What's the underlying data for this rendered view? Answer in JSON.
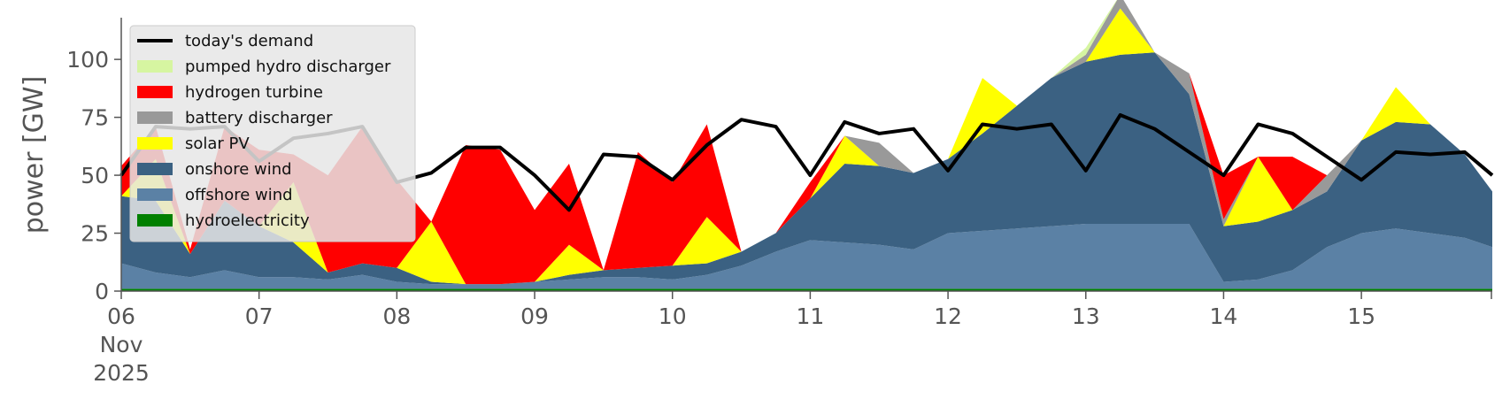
{
  "chart_data": {
    "type": "area",
    "title": "",
    "ylabel": "power [GW]",
    "xlabel": "",
    "ylim": [
      0,
      118
    ],
    "xlim": [
      0,
      9.95
    ],
    "yticks": [
      0,
      25,
      50,
      75,
      100
    ],
    "xticks": [
      {
        "pos": 0,
        "lines": [
          "06",
          "Nov",
          "2025"
        ]
      },
      {
        "pos": 1,
        "lines": [
          "07"
        ]
      },
      {
        "pos": 2,
        "lines": [
          "08"
        ]
      },
      {
        "pos": 3,
        "lines": [
          "09"
        ]
      },
      {
        "pos": 4,
        "lines": [
          "10"
        ]
      },
      {
        "pos": 5,
        "lines": [
          "11"
        ]
      },
      {
        "pos": 6,
        "lines": [
          "12"
        ]
      },
      {
        "pos": 7,
        "lines": [
          "13"
        ]
      },
      {
        "pos": 8,
        "lines": [
          "14"
        ]
      },
      {
        "pos": 9,
        "lines": [
          "15"
        ]
      }
    ],
    "x": [
      0,
      0.25,
      0.5,
      0.75,
      1,
      1.25,
      1.5,
      1.75,
      2,
      2.25,
      2.5,
      2.75,
      3,
      3.25,
      3.5,
      3.75,
      4,
      4.25,
      4.5,
      4.75,
      5,
      5.25,
      5.5,
      5.75,
      6,
      6.25,
      6.5,
      6.75,
      7,
      7.25,
      7.5,
      7.75,
      8,
      8.25,
      8.5,
      8.75,
      9,
      9.25,
      9.5,
      9.75,
      9.95
    ],
    "x_unit": "days since 06 Nov 2025",
    "legend": {
      "placement": "top-left",
      "grid": false
    },
    "series": [
      {
        "name": "hydroelectricity",
        "color": "#008000",
        "values": [
          1,
          1,
          1,
          1,
          1,
          1,
          1,
          1,
          1,
          1,
          1,
          1,
          1,
          1,
          1,
          1,
          1,
          1,
          1,
          1,
          1,
          1,
          1,
          1,
          1,
          1,
          1,
          1,
          1,
          1,
          1,
          1,
          1,
          1,
          1,
          1,
          1,
          1,
          1,
          1,
          1
        ]
      },
      {
        "name": "offshore wind",
        "color": "#5b81a5",
        "values": [
          11,
          7,
          5,
          8,
          5,
          5,
          4,
          6,
          3,
          2,
          2,
          2,
          3,
          4,
          5,
          5,
          4,
          6,
          10,
          16,
          21,
          20,
          19,
          17,
          24,
          25,
          26,
          27,
          28,
          28,
          28,
          28,
          3,
          4,
          8,
          18,
          24,
          26,
          24,
          22,
          18
        ]
      },
      {
        "name": "onshore wind",
        "color": "#3b6182",
        "values": [
          29,
          31,
          10,
          30,
          22,
          15,
          3,
          5,
          6,
          1,
          0,
          0,
          0,
          2,
          3,
          4,
          6,
          5,
          6,
          8,
          18,
          34,
          34,
          33,
          32,
          42,
          53,
          64,
          70,
          73,
          74,
          56,
          24,
          25,
          26,
          24,
          40,
          46,
          47,
          36,
          24
        ]
      },
      {
        "name": "solar PV",
        "color": "#ffff00",
        "values": [
          0,
          18,
          0,
          0,
          0,
          26,
          0,
          0,
          0,
          26,
          0,
          0,
          0,
          13,
          0,
          0,
          0,
          20,
          0,
          0,
          0,
          12,
          0,
          0,
          0,
          24,
          0,
          0,
          0,
          20,
          0,
          0,
          0,
          28,
          0,
          0,
          0,
          15,
          0,
          0,
          0
        ]
      },
      {
        "name": "battery discharger",
        "color": "#999999",
        "values": [
          0,
          0,
          0,
          0,
          0,
          0,
          0,
          0,
          0,
          0,
          0,
          0,
          0,
          0,
          0,
          0,
          0,
          0,
          0,
          0,
          0,
          0,
          10,
          0,
          0,
          0,
          0,
          0,
          3,
          6,
          0,
          9,
          3,
          0,
          0,
          7,
          0,
          0,
          0,
          0,
          0
        ]
      },
      {
        "name": "hydrogen turbine",
        "color": "#ff0000",
        "values": [
          13,
          14,
          2,
          32,
          33,
          12,
          42,
          59,
          38,
          0,
          60,
          58,
          31,
          35,
          0,
          50,
          36,
          40,
          0,
          0,
          7,
          0,
          0,
          0,
          0,
          0,
          0,
          0,
          0,
          0,
          0,
          0,
          19,
          0,
          23,
          0,
          0,
          0,
          0,
          0,
          0
        ]
      },
      {
        "name": "pumped hydro discharger",
        "color": "#d6f5a1",
        "values": [
          0,
          0,
          0,
          0,
          0,
          0,
          0,
          0,
          0,
          0,
          0,
          0,
          0,
          0,
          0,
          0,
          0,
          0,
          0,
          0,
          0,
          0,
          0,
          0,
          0,
          0,
          0,
          0,
          3,
          0,
          0,
          0,
          0,
          0,
          0,
          0,
          0,
          0,
          0,
          0,
          0
        ]
      },
      {
        "name": "today's demand",
        "color": "#000000",
        "line": true,
        "values": [
          50,
          71,
          70,
          71,
          56,
          66,
          68,
          71,
          47,
          51,
          62,
          62,
          50,
          35,
          59,
          58,
          48,
          63,
          74,
          71,
          50,
          73,
          68,
          70,
          52,
          72,
          70,
          72,
          52,
          76,
          70,
          60,
          50,
          72,
          68,
          58,
          48,
          60,
          59,
          60,
          50
        ]
      }
    ]
  }
}
